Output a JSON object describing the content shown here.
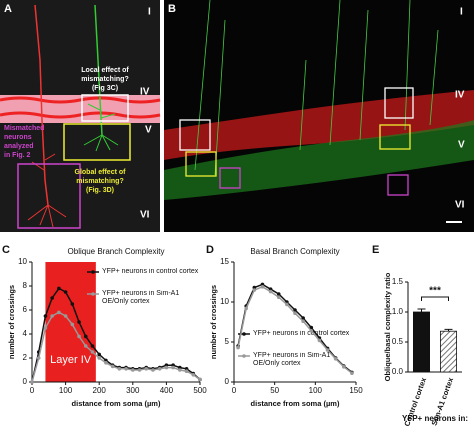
{
  "panel_a": {
    "letter": "A",
    "layers": [
      "I",
      "IV",
      "V",
      "VI"
    ],
    "local_note": [
      "Local effect of",
      "mismatching?",
      "(Fig 3C)"
    ],
    "mismatch_note": [
      "Mismatched",
      "neurons",
      "analyzed",
      "in Fig. 2"
    ],
    "global_note": [
      "Global effect of",
      "mismatching?",
      "(Fig. 3D)"
    ]
  },
  "panel_b": {
    "letter": "B",
    "layers": [
      "I",
      "IV",
      "V",
      "VI"
    ]
  },
  "chart_data": [
    {
      "type": "line",
      "panel": "C",
      "title": "Oblique Branch Complexity",
      "x_label": "distance from soma (µm)",
      "y_label": "number of crossings",
      "x": [
        0,
        20,
        40,
        60,
        80,
        100,
        120,
        140,
        160,
        180,
        200,
        220,
        240,
        260,
        280,
        300,
        320,
        340,
        360,
        380,
        400,
        420,
        440,
        460,
        480,
        500
      ],
      "series": [
        {
          "name": "YFP+ neurons in control cortex",
          "color": "#111111",
          "values": [
            0,
            2.5,
            5.5,
            7,
            7.8,
            7.5,
            6.5,
            5,
            3.8,
            3,
            2.3,
            1.8,
            1.4,
            1.2,
            1.2,
            1.1,
            1.1,
            1.2,
            1.1,
            1.2,
            1.4,
            1.4,
            1.2,
            1.1,
            0.7,
            0.2
          ]
        },
        {
          "name": "YFP+ neurons in Sim-A1 OE/Only cortex",
          "color": "#999999",
          "values": [
            0,
            2,
            4.5,
            5.5,
            5.8,
            5.5,
            4.8,
            3.8,
            3,
            2.5,
            2,
            1.6,
            1.3,
            1.1,
            1.1,
            1,
            1,
            1.1,
            1,
            1.1,
            1.2,
            1.2,
            1,
            0.9,
            0.6,
            0.2
          ]
        }
      ],
      "highlight": {
        "label": "Layer IV",
        "xrange": [
          40,
          190
        ],
        "color": "#e8201f"
      },
      "xlim": [
        0,
        500
      ],
      "xticks": [
        0,
        100,
        200,
        300,
        400,
        500
      ],
      "ylim": [
        0,
        10
      ],
      "yticks": [
        0,
        2,
        4,
        6,
        8,
        10
      ],
      "legend": "upper right"
    },
    {
      "type": "line",
      "panel": "D",
      "title": "Basal Branch Complexity",
      "x_label": "distance from soma (µm)",
      "y_label": "number of crossings",
      "x": [
        5,
        15,
        25,
        35,
        45,
        55,
        65,
        75,
        85,
        95,
        105,
        115,
        125,
        135,
        145
      ],
      "series": [
        {
          "name": "YFP+ neurons in control cortex",
          "color": "#111111",
          "values": [
            4.5,
            9.5,
            11.8,
            12.2,
            11.6,
            11,
            10,
            9,
            8,
            6.8,
            5.5,
            4.2,
            3,
            2,
            1.2
          ]
        },
        {
          "name": "YFP+ neurons in Sim-A1 OE/Only cortex",
          "color": "#999999",
          "values": [
            4.3,
            9.2,
            11.5,
            11.9,
            11.3,
            10.6,
            9.7,
            8.6,
            7.6,
            6.4,
            5.2,
            4,
            2.9,
            1.9,
            1.1
          ]
        }
      ],
      "xlim": [
        0,
        150
      ],
      "xticks": [
        0,
        50,
        100,
        150
      ],
      "ylim": [
        0,
        15
      ],
      "yticks": [
        0,
        5,
        10,
        15
      ],
      "legend": "lower left"
    },
    {
      "type": "bar",
      "panel": "E",
      "y_label": "Oblique/basal complexity ratio",
      "x_label": "YFP+ neurons in:",
      "categories": [
        "Control cortex",
        "Sim-A1 cortex"
      ],
      "values": [
        1.0,
        0.68
      ],
      "errors": [
        0.05,
        0.03
      ],
      "colors": [
        "#111111",
        "#999999"
      ],
      "patterns": [
        "solid",
        "hatched"
      ],
      "significance": "***",
      "ylim": [
        0,
        1.5
      ],
      "yticks": [
        {
          "value": 0,
          "label": "0.0"
        },
        {
          "value": 0.5,
          "label": "0.5"
        },
        {
          "value": 1,
          "label": "1.0"
        },
        {
          "value": 1.5,
          "label": "1.5"
        }
      ]
    }
  ]
}
